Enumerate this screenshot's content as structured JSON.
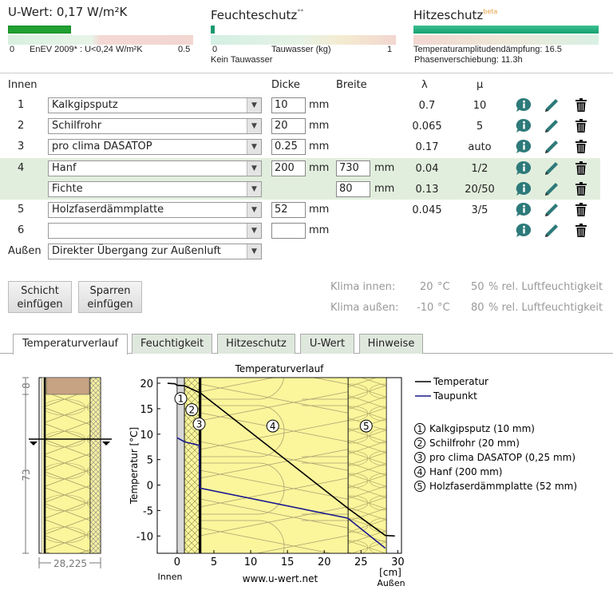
{
  "summary": {
    "uwert": {
      "title": "U-Wert: 0,17 W/m²K",
      "min": "0",
      "label": "EnEV 2009* : U<0,24 W/m²K",
      "max": "0.5",
      "fill_fraction": 0.34
    },
    "feuchte": {
      "title": "Feuchteschutz",
      "sup": "**",
      "min": "0",
      "label": "Tauwasser (kg)",
      "max": "1",
      "status": "Kein Tauwasser",
      "fill_fraction": 0.02
    },
    "hitze": {
      "title": "Hitzeschutz",
      "sup": "beta",
      "line1": "Temperaturamplitudendämpfung: 16.5",
      "line2": "Phasenverschiebung: 11.3h",
      "fill_fraction": 1.0
    }
  },
  "table": {
    "headers": {
      "inside": "Innen",
      "thickness": "Dicke",
      "width": "Breite",
      "lambda": "λ",
      "mu": "μ"
    },
    "unit": "mm",
    "rows": [
      {
        "num": "1",
        "material": "Kalkgipsputz",
        "thickness": "10",
        "width": "",
        "lambda": "0.7",
        "mu": "10"
      },
      {
        "num": "2",
        "material": "Schilfrohr",
        "thickness": "20",
        "width": "",
        "lambda": "0.065",
        "mu": "5"
      },
      {
        "num": "3",
        "material": "pro clima DASATOP",
        "thickness": "0.25",
        "width": "",
        "lambda": "0.17",
        "mu": "auto"
      },
      {
        "num": "4",
        "material": "Hanf",
        "thickness": "200",
        "width": "730",
        "lambda": "0.04",
        "mu": "1/2"
      },
      {
        "num": "",
        "material": "Fichte",
        "thickness": "",
        "width": "80",
        "lambda": "0.13",
        "mu": "20/50"
      },
      {
        "num": "5",
        "material": "Holzfaserdämmplatte",
        "thickness": "52",
        "width": "",
        "lambda": "0.045",
        "mu": "3/5"
      },
      {
        "num": "6",
        "material": "",
        "thickness": "",
        "width": "",
        "lambda": "",
        "mu": ""
      }
    ],
    "outside_label": "Außen",
    "outside_value": "Direkter Übergang zur Außenluft"
  },
  "buttons": {
    "add_layer": "Schicht einfügen",
    "add_rafter": "Sparren einfügen"
  },
  "climate": {
    "inside_label": "Klima innen:",
    "inside_temp": "20",
    "outside_label": "Klima außen:",
    "outside_temp": "-10",
    "temp_unit": "°C",
    "inside_hum": "50",
    "outside_hum": "80",
    "hum_unit": "% rel. Luftfeuchtigkeit"
  },
  "tabs": [
    "Temperaturverlauf",
    "Feuchtigkeit",
    "Hitzeschutz",
    "U-Wert",
    "Hinweise"
  ],
  "diagram": {
    "dim_top": "8",
    "dim_main": "73",
    "dim_width": "28,225"
  },
  "chart_data": {
    "type": "line",
    "title": "Temperaturverlauf",
    "ylabel": "Temperatur [°C]",
    "xlabel": "[cm]",
    "x_left_label": "Innen",
    "x_right_label": "Außen",
    "watermark": "www.u-wert.net",
    "xlim": [
      -2.7,
      30.5
    ],
    "ylim": [
      -13.4,
      21.1
    ],
    "xticks": [
      0,
      5,
      10,
      15,
      20,
      25,
      30
    ],
    "yticks": [
      20,
      15,
      10,
      5,
      0,
      -5,
      -10
    ],
    "layers": [
      {
        "from": 0,
        "to": 1,
        "label": "1"
      },
      {
        "from": 1,
        "to": 3,
        "label": "2"
      },
      {
        "from": 3,
        "to": 3.25,
        "label": "3"
      },
      {
        "from": 3.25,
        "to": 23.25,
        "label": "4"
      },
      {
        "from": 23.25,
        "to": 28.45,
        "label": "5"
      }
    ],
    "series": [
      {
        "name": "Temperatur",
        "color": "#000000",
        "points": [
          [
            -1.3,
            20
          ],
          [
            -0.3,
            19.9
          ],
          [
            0,
            19.6
          ],
          [
            1,
            19.5
          ],
          [
            3,
            18.2
          ],
          [
            3.25,
            18
          ],
          [
            23.25,
            -4.6
          ],
          [
            28.3,
            -9.9
          ],
          [
            29.6,
            -10
          ]
        ]
      },
      {
        "name": "Taupunkt",
        "color": "#1a1a8c",
        "points": [
          [
            0,
            9.3
          ],
          [
            1,
            8.5
          ],
          [
            3,
            7.8
          ],
          [
            3.1,
            -0.6
          ],
          [
            23.2,
            -6.5
          ],
          [
            28.3,
            -12.4
          ]
        ]
      }
    ],
    "legend_list": [
      "Kalkgipsputz (10 mm)",
      "Schilfrohr (20 mm)",
      "pro clima DASATOP (0,25 mm)",
      "Hanf (200 mm)",
      "Holzfaserdämmplatte (52 mm)"
    ]
  }
}
